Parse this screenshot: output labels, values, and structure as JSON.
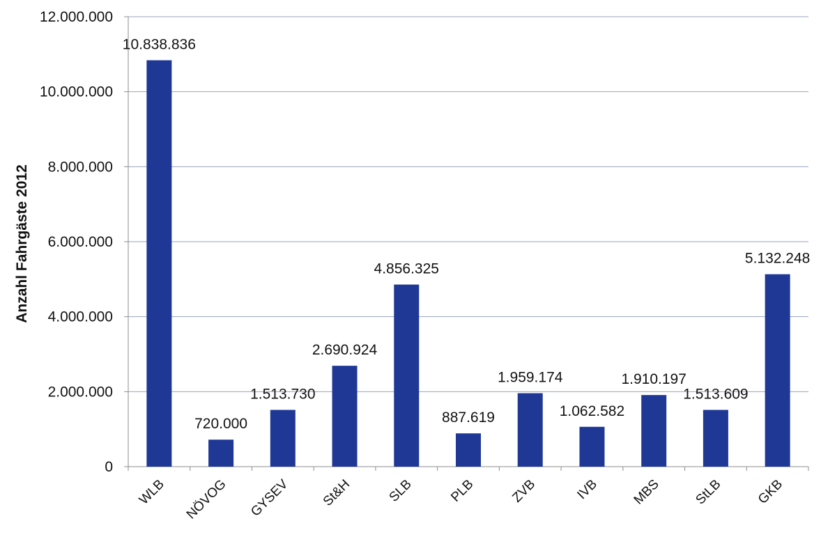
{
  "chart_data": {
    "type": "bar",
    "title": "",
    "xlabel": "",
    "ylabel": "Anzahl Fahrgäste 2012",
    "categories": [
      "WLB",
      "NÖVOG",
      "GYSEV",
      "St&H",
      "SLB",
      "PLB",
      "ZVB",
      "IVB",
      "MBS",
      "StLB",
      "GKB"
    ],
    "values": [
      10838836,
      720000,
      1513730,
      2690924,
      4856325,
      887619,
      1959174,
      1062582,
      1910197,
      1513609,
      5132248
    ],
    "value_labels": [
      "10.838.836",
      "720.000",
      "1.513.730",
      "2.690.924",
      "4.856.325",
      "887.619",
      "1.959.174",
      "1.062.582",
      "1.910.197",
      "1.513.609",
      "5.132.248"
    ],
    "ylim": [
      0,
      12000000
    ],
    "yticks": [
      0,
      2000000,
      4000000,
      6000000,
      8000000,
      10000000,
      12000000
    ],
    "ytick_labels": [
      "0",
      "2.000.000",
      "4.000.000",
      "6.000.000",
      "8.000.000",
      "10.000.000",
      "12.000.000"
    ],
    "grid": true,
    "legend": "none",
    "bar_color": "#1f3896",
    "grid_color": "#9aa3bd"
  }
}
